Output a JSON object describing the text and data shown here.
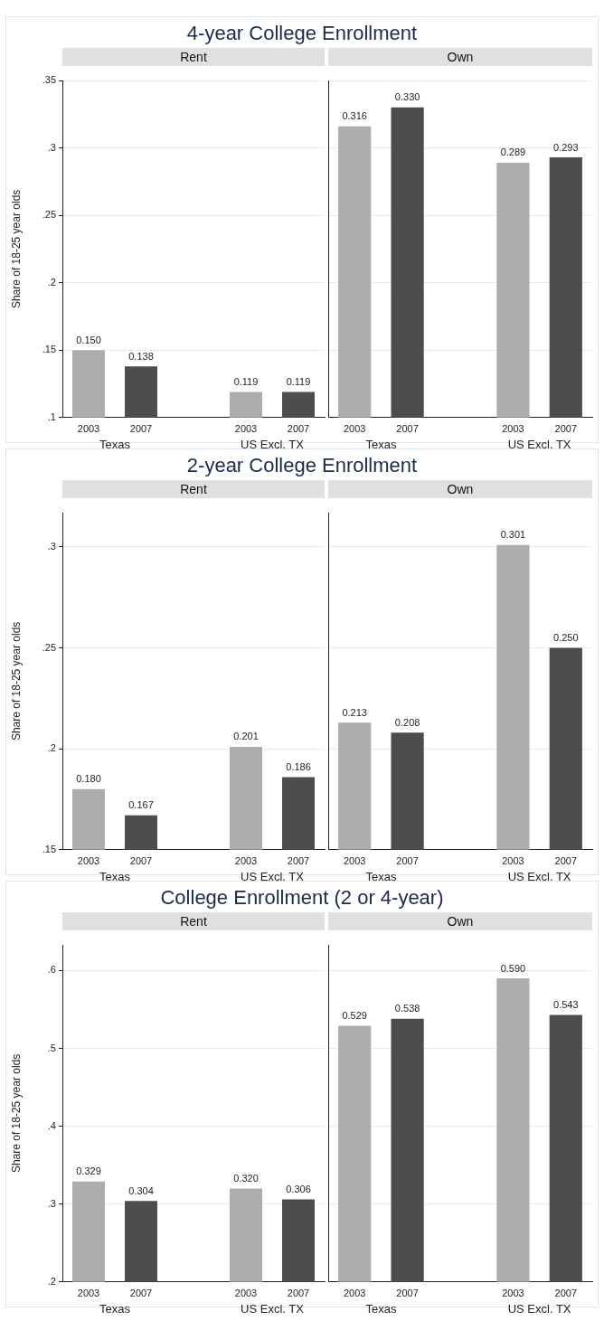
{
  "chart_data": [
    {
      "type": "bar",
      "title": "4-year College Enrollment",
      "subtitle": "Rent",
      "ylabel": "Share of 18-25 year olds",
      "categories": [
        "2003",
        "2007",
        null,
        "2003",
        "2007"
      ],
      "values": [
        0.15,
        0.138,
        null,
        0.119,
        0.119
      ],
      "colors": [
        "#adadad",
        "#4d4d4d",
        null,
        "#adadad",
        "#4d4d4d"
      ],
      "value_labels": [
        "0.150",
        "0.138",
        null,
        "0.119",
        "0.119"
      ],
      "ylim": [
        0.1,
        0.35
      ],
      "yticks": [
        {
          "value": 0.1,
          "label": ".1"
        },
        {
          "value": 0.15,
          "label": ".15"
        },
        {
          "value": 0.2,
          "label": ".2"
        },
        {
          "value": 0.25,
          "label": ".25"
        },
        {
          "value": 0.3,
          "label": ".3"
        },
        {
          "value": 0.35,
          "label": ".35"
        }
      ],
      "grid": "y",
      "annotations": [
        "Texas",
        "US Excl. TX"
      ]
    },
    {
      "type": "bar",
      "subtitle": "Own",
      "categories": [
        "2003",
        "2007",
        null,
        "2003",
        "2007"
      ],
      "values": [
        0.316,
        0.33,
        null,
        0.289,
        0.293
      ],
      "colors": [
        "#adadad",
        "#4d4d4d",
        null,
        "#adadad",
        "#4d4d4d"
      ],
      "value_labels": [
        "0.316",
        "0.330",
        null,
        "0.289",
        "0.293"
      ],
      "ylim": [
        0.1,
        0.35
      ],
      "yticks": [
        0.1,
        0.15,
        0.2,
        0.25,
        0.3,
        0.35
      ],
      "grid": "y",
      "tick_labels": "x",
      "annotations": [
        "Texas",
        "US Excl. TX"
      ]
    },
    {
      "type": "bar",
      "title": "2-year College Enrollment",
      "subtitle": "Rent",
      "ylabel": "Share of 18-25 year olds",
      "categories": [
        "2003",
        "2007",
        null,
        "2003",
        "2007"
      ],
      "values": [
        0.18,
        0.167,
        null,
        0.201,
        0.186
      ],
      "colors": [
        "#adadad",
        "#4d4d4d",
        null,
        "#adadad",
        "#4d4d4d"
      ],
      "value_labels": [
        "0.180",
        "0.167",
        null,
        "0.201",
        "0.186"
      ],
      "ylim": [
        0.15,
        0.317
      ],
      "yticks": [
        {
          "value": 0.15,
          "label": ".15"
        },
        {
          "value": 0.2,
          "label": ".2"
        },
        {
          "value": 0.25,
          "label": ".25"
        },
        {
          "value": 0.3,
          "label": ".3"
        }
      ],
      "grid": "y",
      "annotations": [
        "Texas",
        "US Excl. TX"
      ]
    },
    {
      "type": "bar",
      "subtitle": "Own",
      "categories": [
        "2003",
        "2007",
        null,
        "2003",
        "2007"
      ],
      "values": [
        0.213,
        0.208,
        null,
        0.301,
        0.25
      ],
      "colors": [
        "#adadad",
        "#4d4d4d",
        null,
        "#adadad",
        "#4d4d4d"
      ],
      "value_labels": [
        "0.213",
        "0.208",
        null,
        "0.301",
        "0.250"
      ],
      "ylim": [
        0.15,
        0.317
      ],
      "yticks": [
        0.15,
        0.2,
        0.25,
        0.3
      ],
      "grid": "y",
      "tick_labels": "x",
      "annotations": [
        "Texas",
        "US Excl. TX"
      ]
    },
    {
      "type": "bar",
      "title": "College Enrollment (2 or 4-year)",
      "subtitle": "Rent",
      "ylabel": "Share of 18-25 year olds",
      "categories": [
        "2003",
        "2007",
        null,
        "2003",
        "2007"
      ],
      "values": [
        0.329,
        0.304,
        null,
        0.32,
        0.306
      ],
      "colors": [
        "#adadad",
        "#4d4d4d",
        null,
        "#adadad",
        "#4d4d4d"
      ],
      "value_labels": [
        "0.329",
        "0.304",
        null,
        "0.320",
        "0.306"
      ],
      "ylim": [
        0.2,
        0.633
      ],
      "yticks": [
        {
          "value": 0.2,
          "label": ".2"
        },
        {
          "value": 0.3,
          "label": ".3"
        },
        {
          "value": 0.4,
          "label": ".4"
        },
        {
          "value": 0.5,
          "label": ".5"
        },
        {
          "value": 0.6,
          "label": ".6"
        }
      ],
      "grid": "y",
      "annotations": [
        "Texas",
        "US Excl. TX"
      ]
    },
    {
      "type": "bar",
      "subtitle": "Own",
      "categories": [
        "2003",
        "2007",
        null,
        "2003",
        "2007"
      ],
      "values": [
        0.529,
        0.538,
        null,
        0.59,
        0.543
      ],
      "colors": [
        "#adadad",
        "#4d4d4d",
        null,
        "#adadad",
        "#4d4d4d"
      ],
      "value_labels": [
        "0.529",
        "0.538",
        null,
        "0.590",
        "0.543"
      ],
      "ylim": [
        0.2,
        0.633
      ],
      "yticks": [
        0.2,
        0.3,
        0.4,
        0.5,
        0.6
      ],
      "grid": "y",
      "tick_labels": "x",
      "annotations": [
        "Texas",
        "US Excl. TX"
      ]
    }
  ]
}
